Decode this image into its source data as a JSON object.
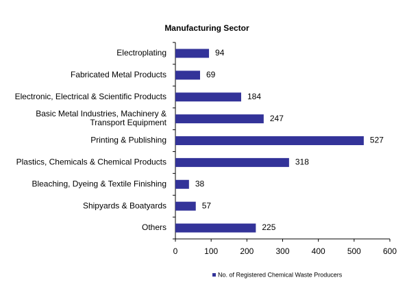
{
  "chart_data": {
    "type": "bar",
    "orientation": "horizontal",
    "title": "Manufacturing  Sector",
    "categories": [
      "Electroplating",
      "Fabricated Metal Products",
      "Electronic, Electrical & Scientific Products",
      "Basic Metal Industries, Machinery &\nTransport Equipment",
      "Printing & Publishing",
      "Plastics, Chemicals & Chemical Products",
      "Bleaching, Dyeing & Textile Finishing",
      "Shipyards & Boatyards",
      "Others"
    ],
    "series": [
      {
        "name": "No. of Registered Chemical Waste Producers",
        "color": "#333399",
        "values": [
          94,
          69,
          184,
          247,
          527,
          318,
          38,
          57,
          225
        ]
      }
    ],
    "xlim": [
      0,
      600
    ],
    "xticks": [
      0,
      100,
      200,
      300,
      400,
      500,
      600
    ],
    "legend": "bottom"
  }
}
